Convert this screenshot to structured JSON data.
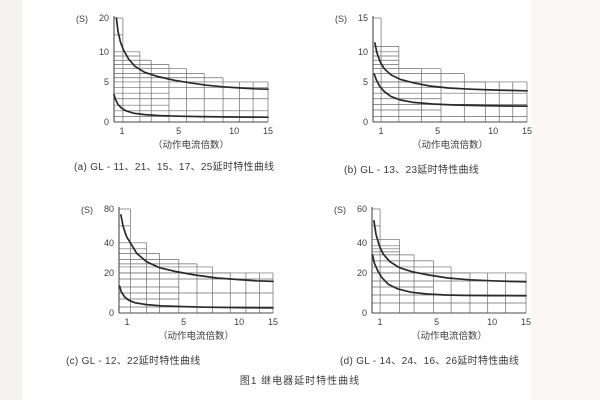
{
  "page": {
    "figure_caption": "图1  继电器延时特性曲线"
  },
  "colors": {
    "background": "#fdfcfc",
    "panel": "#ffffff",
    "grid": "#6b6b6b",
    "axis": "#4a4a4a",
    "curve": "#2a2a2a",
    "text": "#3c3c3c"
  },
  "chart_data": [
    {
      "id": "a",
      "type": "line",
      "caption": "(a) GL - 11、21、15、17、25延时特性曲线",
      "ylabel": "(S)",
      "xlabel": "（动作电流倍数）",
      "x_ticks": [
        1,
        5,
        10,
        15
      ],
      "y_ticks": [
        0,
        5,
        10,
        20
      ],
      "xlim": [
        1,
        15
      ],
      "ylim": [
        0,
        20
      ],
      "grid": true,
      "steps": [
        [
          1,
          1.55,
          20
        ],
        [
          1.55,
          2.6,
          10
        ],
        [
          2.6,
          3.3,
          8.6
        ],
        [
          3.3,
          4.4,
          7.9
        ],
        [
          4.4,
          5.7,
          7.2
        ],
        [
          5.7,
          7.3,
          6.4
        ],
        [
          7.3,
          9,
          5.7
        ],
        [
          9,
          15,
          5
        ]
      ],
      "hlines": [
        [
          15,
          1.55
        ],
        [
          9.3,
          2.6
        ],
        [
          4.3,
          15
        ],
        [
          3.6,
          4.4
        ],
        [
          2.9,
          15
        ],
        [
          2.1,
          4.4
        ],
        [
          1.4,
          15
        ],
        [
          0.7,
          4.4
        ]
      ],
      "vlines": [
        [
          10.8,
          5
        ],
        [
          12.8,
          5
        ]
      ],
      "series": [
        {
          "name": "upper-curve",
          "points": [
            [
              1.15,
              20
            ],
            [
              1.25,
              16
            ],
            [
              1.4,
              12.8
            ],
            [
              1.6,
              10.4
            ],
            [
              1.9,
              8.8
            ],
            [
              2.3,
              7.6
            ],
            [
              2.9,
              6.6
            ],
            [
              3.7,
              5.9
            ],
            [
              4.7,
              5.3
            ],
            [
              6,
              4.9
            ],
            [
              7.5,
              4.6
            ],
            [
              9,
              4.4
            ],
            [
              11,
              4.25
            ],
            [
              13,
              4.15
            ],
            [
              15,
              4.1
            ]
          ]
        },
        {
          "name": "lower-curve",
          "points": [
            [
              1,
              3.4
            ],
            [
              1.1,
              2.8
            ],
            [
              1.25,
              2.2
            ],
            [
              1.45,
              1.75
            ],
            [
              1.75,
              1.4
            ],
            [
              2.2,
              1.1
            ],
            [
              2.9,
              0.92
            ],
            [
              3.8,
              0.8
            ],
            [
              5,
              0.73
            ],
            [
              7,
              0.67
            ],
            [
              10,
              0.63
            ],
            [
              15,
              0.6
            ]
          ]
        }
      ]
    },
    {
      "id": "b",
      "type": "line",
      "caption": "(b) GL - 13、23延时特性曲线",
      "ylabel": "(S)",
      "xlabel": "（动作电流倍数）",
      "x_ticks": [
        1,
        5,
        10,
        15
      ],
      "y_ticks": [
        0,
        5,
        10,
        15
      ],
      "xlim": [
        1,
        15
      ],
      "ylim": [
        0,
        15
      ],
      "grid": true,
      "steps": [
        [
          1,
          1.5,
          15
        ],
        [
          1.5,
          2.6,
          10.8
        ],
        [
          2.6,
          4,
          7.2
        ],
        [
          4,
          5.3,
          7.2
        ],
        [
          5.3,
          7.4,
          6.4
        ],
        [
          7.4,
          9.3,
          5
        ],
        [
          9.3,
          15,
          5
        ]
      ],
      "hlines": [
        [
          10,
          2.6
        ],
        [
          9.3,
          2.6
        ],
        [
          8.6,
          2.6
        ],
        [
          7.9,
          2.6
        ],
        [
          4.3,
          5.3
        ],
        [
          3.6,
          15
        ],
        [
          2.9,
          5.3
        ],
        [
          2.2,
          15
        ],
        [
          1.5,
          5.3
        ],
        [
          0.7,
          15
        ]
      ],
      "vlines": [
        [
          10.9,
          5
        ],
        [
          12.9,
          5
        ]
      ],
      "series": [
        {
          "name": "upper-curve",
          "points": [
            [
              1.12,
              11.3
            ],
            [
              1.25,
              9.8
            ],
            [
              1.45,
              8.3
            ],
            [
              1.7,
              7.2
            ],
            [
              2.1,
              6.2
            ],
            [
              2.7,
              5.4
            ],
            [
              3.5,
              4.9
            ],
            [
              4.5,
              4.5
            ],
            [
              6,
              4.25
            ],
            [
              8,
              4.1
            ],
            [
              10,
              4.0
            ],
            [
              12.5,
              3.95
            ],
            [
              15,
              3.9
            ]
          ]
        },
        {
          "name": "lower-curve",
          "points": [
            [
              1.08,
              6.3
            ],
            [
              1.2,
              5.4
            ],
            [
              1.4,
              4.5
            ],
            [
              1.7,
              3.8
            ],
            [
              2.1,
              3.2
            ],
            [
              2.7,
              2.75
            ],
            [
              3.5,
              2.45
            ],
            [
              4.7,
              2.25
            ],
            [
              6.5,
              2.12
            ],
            [
              9,
              2.05
            ],
            [
              12,
              2.0
            ],
            [
              15,
              1.98
            ]
          ]
        }
      ]
    },
    {
      "id": "c",
      "type": "line",
      "caption": "(c) GL - 12、22延时特性曲线",
      "ylabel": "(S)",
      "xlabel": "（动作电流倍数）",
      "x_ticks": [
        1,
        5,
        10,
        15
      ],
      "y_ticks": [
        0,
        20,
        40,
        80
      ],
      "xlim": [
        1,
        15
      ],
      "ylim": [
        0,
        80
      ],
      "grid": true,
      "steps": [
        [
          1,
          1.7,
          80
        ],
        [
          1.7,
          2.7,
          40
        ],
        [
          2.7,
          3.5,
          33
        ],
        [
          3.5,
          4.7,
          29
        ],
        [
          4.7,
          6.2,
          26
        ],
        [
          6.2,
          7.6,
          24
        ],
        [
          7.6,
          9.2,
          20
        ],
        [
          9.2,
          15,
          20
        ]
      ],
      "hlines": [
        [
          60,
          1.7
        ],
        [
          36,
          2.7
        ],
        [
          17,
          15
        ],
        [
          13,
          4.7
        ],
        [
          10,
          15
        ],
        [
          7,
          4.7
        ],
        [
          3,
          15
        ]
      ],
      "vlines": [
        [
          11,
          20
        ],
        [
          13,
          20
        ]
      ],
      "series": [
        {
          "name": "upper-curve",
          "points": [
            [
              1.12,
              73
            ],
            [
              1.25,
              60
            ],
            [
              1.45,
              48
            ],
            [
              1.7,
              40
            ],
            [
              2.1,
              33
            ],
            [
              2.7,
              27.5
            ],
            [
              3.5,
              23.5
            ],
            [
              4.5,
              21
            ],
            [
              6,
              19
            ],
            [
              8,
              17.5
            ],
            [
              10,
              16.7
            ],
            [
              12.5,
              16.1
            ],
            [
              15,
              15.8
            ]
          ]
        },
        {
          "name": "lower-curve",
          "points": [
            [
              1.03,
              13.5
            ],
            [
              1.15,
              10.5
            ],
            [
              1.35,
              8
            ],
            [
              1.6,
              6.4
            ],
            [
              2,
              5.1
            ],
            [
              2.7,
              4.2
            ],
            [
              3.6,
              3.6
            ],
            [
              5,
              3.2
            ],
            [
              7,
              2.9
            ],
            [
              10,
              2.7
            ],
            [
              15,
              2.55
            ]
          ]
        }
      ]
    },
    {
      "id": "d",
      "type": "line",
      "caption": "(d) GL - 14、24、16、26延时特性曲线",
      "ylabel": "(S)",
      "xlabel": "（动作电流倍数）",
      "x_ticks": [
        1,
        5,
        10,
        15
      ],
      "y_ticks": [
        0,
        20,
        40,
        60
      ],
      "xlim": [
        1,
        15
      ],
      "ylim": [
        0,
        60
      ],
      "grid": true,
      "steps": [
        [
          1,
          1.5,
          60
        ],
        [
          1.5,
          2.7,
          42
        ],
        [
          2.7,
          3.6,
          32
        ],
        [
          3.6,
          4.8,
          28
        ],
        [
          4.8,
          6.3,
          24
        ],
        [
          6.3,
          8,
          20
        ],
        [
          8,
          15,
          20
        ]
      ],
      "hlines": [
        [
          50,
          1.5
        ],
        [
          38,
          2.7
        ],
        [
          36,
          2.7
        ],
        [
          34,
          2.7
        ],
        [
          16,
          15
        ],
        [
          13,
          4.8
        ],
        [
          9,
          15
        ],
        [
          5,
          15
        ]
      ],
      "vlines": [
        [
          9.6,
          20
        ],
        [
          12,
          20
        ]
      ],
      "series": [
        {
          "name": "upper-curve",
          "points": [
            [
              1.12,
              53
            ],
            [
              1.25,
              45
            ],
            [
              1.45,
              38
            ],
            [
              1.7,
              32.5
            ],
            [
              2.1,
              27.5
            ],
            [
              2.7,
              23.5
            ],
            [
              3.5,
              20.8
            ],
            [
              4.5,
              19
            ],
            [
              6,
              17.5
            ],
            [
              8,
              16.6
            ],
            [
              10,
              16.1
            ],
            [
              12.5,
              15.8
            ],
            [
              15,
              15.6
            ]
          ]
        },
        {
          "name": "lower-curve",
          "points": [
            [
              1.03,
              32
            ],
            [
              1.15,
              26.5
            ],
            [
              1.35,
              21.5
            ],
            [
              1.6,
              17.8
            ],
            [
              2,
              14.4
            ],
            [
              2.6,
              12
            ],
            [
              3.4,
              10.4
            ],
            [
              4.4,
              9.5
            ],
            [
              5.8,
              9.0
            ],
            [
              7.5,
              8.8
            ],
            [
              10,
              8.7
            ],
            [
              15,
              8.6
            ]
          ]
        }
      ]
    }
  ]
}
